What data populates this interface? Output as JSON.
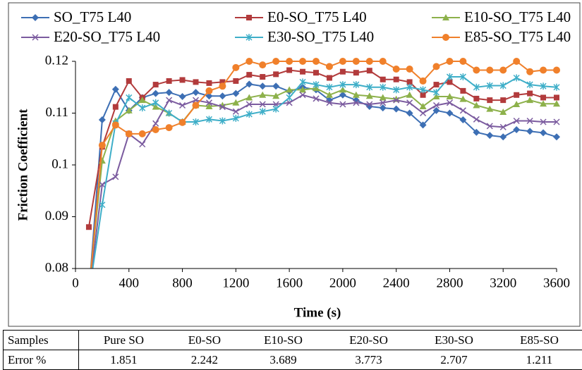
{
  "chart_data": {
    "type": "line",
    "xlabel": "Time (s)",
    "ylabel": "Friction Coefficient",
    "x": [
      100,
      200,
      300,
      400,
      500,
      600,
      700,
      800,
      900,
      1000,
      1100,
      1200,
      1300,
      1400,
      1500,
      1600,
      1700,
      1800,
      1900,
      2000,
      2100,
      2200,
      2300,
      2400,
      2500,
      2600,
      2700,
      2800,
      2900,
      3000,
      3100,
      3200,
      3300,
      3400,
      3500,
      3600
    ],
    "xlim": [
      0,
      3600
    ],
    "xticks": [
      0,
      400,
      800,
      1200,
      1600,
      2000,
      2400,
      2800,
      3200,
      3600
    ],
    "ylim": [
      0.08,
      0.12
    ],
    "yticks": [
      0.08,
      0.09,
      0.1,
      0.11,
      0.12
    ],
    "series": [
      {
        "name": "SO_T75 L40",
        "color": "#3d6fb4",
        "marker": "diamond",
        "values": [
          0.075,
          0.1087,
          0.1146,
          0.1105,
          0.113,
          0.1138,
          0.114,
          0.1132,
          0.114,
          0.1133,
          0.1133,
          0.1138,
          0.1156,
          0.1152,
          0.1152,
          0.1142,
          0.115,
          0.1145,
          0.1125,
          0.1135,
          0.1125,
          0.1113,
          0.111,
          0.1108,
          0.11,
          0.1077,
          0.1105,
          0.11,
          0.1087,
          0.1063,
          0.1057,
          0.1054,
          0.1068,
          0.1065,
          0.1062,
          0.1054
        ]
      },
      {
        "name": "E0-SO_T75 L40",
        "color": "#b23b3c",
        "marker": "square",
        "values": [
          0.088,
          0.1035,
          0.1112,
          0.1162,
          0.113,
          0.1155,
          0.1162,
          0.1164,
          0.116,
          0.1158,
          0.116,
          0.1162,
          0.1174,
          0.117,
          0.1175,
          0.1183,
          0.118,
          0.1178,
          0.1168,
          0.118,
          0.1178,
          0.1182,
          0.1165,
          0.1165,
          0.116,
          0.1135,
          0.1155,
          0.116,
          0.1143,
          0.1128,
          0.1125,
          0.1125,
          0.1135,
          0.1138,
          0.113,
          0.113
        ]
      },
      {
        "name": "E10-SO_T75 L40",
        "color": "#8db14b",
        "marker": "triangle",
        "values": [
          0.076,
          0.1008,
          0.1085,
          0.1105,
          0.1125,
          0.1112,
          0.11,
          0.1083,
          0.1115,
          0.1113,
          0.1115,
          0.112,
          0.113,
          0.1135,
          0.1133,
          0.1145,
          0.1145,
          0.1148,
          0.1135,
          0.1145,
          0.1135,
          0.1133,
          0.113,
          0.1127,
          0.1135,
          0.1113,
          0.1132,
          0.1132,
          0.1127,
          0.1115,
          0.1108,
          0.1102,
          0.1117,
          0.1125,
          0.1118,
          0.1118
        ]
      },
      {
        "name": "E20-SO_T75 L40",
        "color": "#7b5b9f",
        "marker": "x",
        "values": [
          0.075,
          0.0962,
          0.0977,
          0.106,
          0.104,
          0.108,
          0.1125,
          0.1115,
          0.1125,
          0.112,
          0.1112,
          0.1103,
          0.1117,
          0.1117,
          0.1117,
          0.112,
          0.1135,
          0.1128,
          0.112,
          0.1117,
          0.112,
          0.1117,
          0.112,
          0.1125,
          0.112,
          0.11,
          0.1115,
          0.112,
          0.1105,
          0.1088,
          0.1075,
          0.1073,
          0.1085,
          0.1085,
          0.1083,
          0.1083
        ]
      },
      {
        "name": "E30-SO_T75 L40",
        "color": "#3eaec8",
        "marker": "star",
        "values": [
          0.075,
          0.0923,
          0.108,
          0.113,
          0.111,
          0.112,
          0.11,
          0.1083,
          0.1083,
          0.1088,
          0.1085,
          0.109,
          0.1098,
          0.1103,
          0.1108,
          0.113,
          0.116,
          0.1155,
          0.115,
          0.1155,
          0.1155,
          0.115,
          0.115,
          0.1145,
          0.115,
          0.1145,
          0.114,
          0.117,
          0.117,
          0.115,
          0.1153,
          0.1153,
          0.1168,
          0.1155,
          0.1152,
          0.115
        ]
      },
      {
        "name": "E85-SO_T75 L40",
        "color": "#f0802b",
        "marker": "circle",
        "values": [
          0.075,
          0.1038,
          0.1077,
          0.106,
          0.106,
          0.1068,
          0.1072,
          0.1082,
          0.1115,
          0.1143,
          0.1152,
          0.1188,
          0.12,
          0.1193,
          0.12,
          0.12,
          0.12,
          0.12,
          0.119,
          0.12,
          0.12,
          0.12,
          0.12,
          0.1185,
          0.1185,
          0.1162,
          0.119,
          0.12,
          0.12,
          0.1183,
          0.1183,
          0.1183,
          0.12,
          0.118,
          0.1183,
          0.1183
        ]
      }
    ]
  },
  "table": {
    "header": [
      "Samples",
      "Pure SO",
      "E0-SO",
      "E10-SO",
      "E20-SO",
      "E30-SO",
      "E85-SO"
    ],
    "rows": [
      [
        "Error %",
        "1.851",
        "2.242",
        "3.689",
        "3.773",
        "2.707",
        "1.211"
      ]
    ]
  }
}
